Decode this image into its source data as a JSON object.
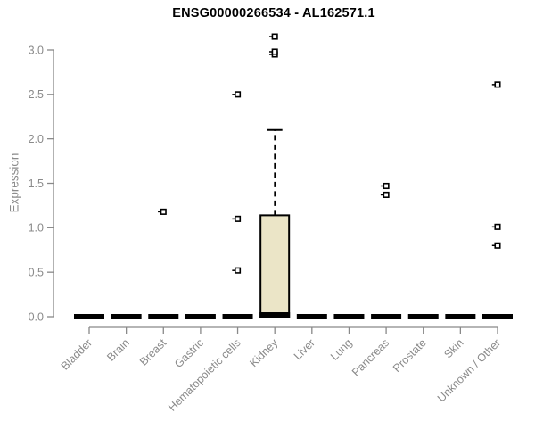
{
  "title": "ENSG00000266534 - AL162571.1",
  "chart_data": {
    "type": "boxplot",
    "title": "ENSG00000266534 - AL162571.1",
    "xlabel": "",
    "ylabel": "Expression",
    "ylim": [
      0.0,
      3.0
    ],
    "yticks": [
      0.0,
      0.5,
      1.0,
      1.5,
      2.0,
      2.5,
      3.0
    ],
    "grid": false,
    "legend": "none",
    "categories": [
      "Bladder",
      "Brain",
      "Breast",
      "Gastric",
      "Hematopoietic cells",
      "Kidney",
      "Liver",
      "Lung",
      "Pancreas",
      "Prostate",
      "Skin",
      "Unknown / Other"
    ],
    "boxes": [
      {
        "category": "Bladder",
        "median": 0,
        "q1": 0,
        "q3": 0,
        "whisker_low": 0,
        "whisker_high": 0,
        "outliers": []
      },
      {
        "category": "Brain",
        "median": 0,
        "q1": 0,
        "q3": 0,
        "whisker_low": 0,
        "whisker_high": 0,
        "outliers": []
      },
      {
        "category": "Breast",
        "median": 0,
        "q1": 0,
        "q3": 0,
        "whisker_low": 0,
        "whisker_high": 0,
        "outliers": [
          1.18
        ]
      },
      {
        "category": "Gastric",
        "median": 0,
        "q1": 0,
        "q3": 0,
        "whisker_low": 0,
        "whisker_high": 0,
        "outliers": []
      },
      {
        "category": "Hematopoietic cells",
        "median": 0,
        "q1": 0,
        "q3": 0,
        "whisker_low": 0,
        "whisker_high": 0,
        "outliers": [
          0.52,
          1.1,
          2.5
        ]
      },
      {
        "category": "Kidney",
        "median": 0.02,
        "q1": 0,
        "q3": 1.14,
        "whisker_low": 0,
        "whisker_high": 2.1,
        "outliers": [
          2.95,
          2.98,
          3.15
        ]
      },
      {
        "category": "Liver",
        "median": 0,
        "q1": 0,
        "q3": 0,
        "whisker_low": 0,
        "whisker_high": 0,
        "outliers": []
      },
      {
        "category": "Lung",
        "median": 0,
        "q1": 0,
        "q3": 0,
        "whisker_low": 0,
        "whisker_high": 0,
        "outliers": []
      },
      {
        "category": "Pancreas",
        "median": 0,
        "q1": 0,
        "q3": 0,
        "whisker_low": 0,
        "whisker_high": 0,
        "outliers": [
          1.37,
          1.47
        ]
      },
      {
        "category": "Prostate",
        "median": 0,
        "q1": 0,
        "q3": 0,
        "whisker_low": 0,
        "whisker_high": 0,
        "outliers": []
      },
      {
        "category": "Skin",
        "median": 0,
        "q1": 0,
        "q3": 0,
        "whisker_low": 0,
        "whisker_high": 0,
        "outliers": []
      },
      {
        "category": "Unknown / Other",
        "median": 0,
        "q1": 0,
        "q3": 0,
        "whisker_low": 0,
        "whisker_high": 0,
        "outliers": [
          0.8,
          1.01,
          2.61
        ]
      }
    ],
    "colors": {
      "box_fill": "#ebe5c7",
      "box_stroke": "#000000",
      "median_bar": "#000000",
      "axis": "#898989",
      "tick_label": "#8a8a8a",
      "title": "#000000",
      "background": "#ffffff"
    }
  }
}
